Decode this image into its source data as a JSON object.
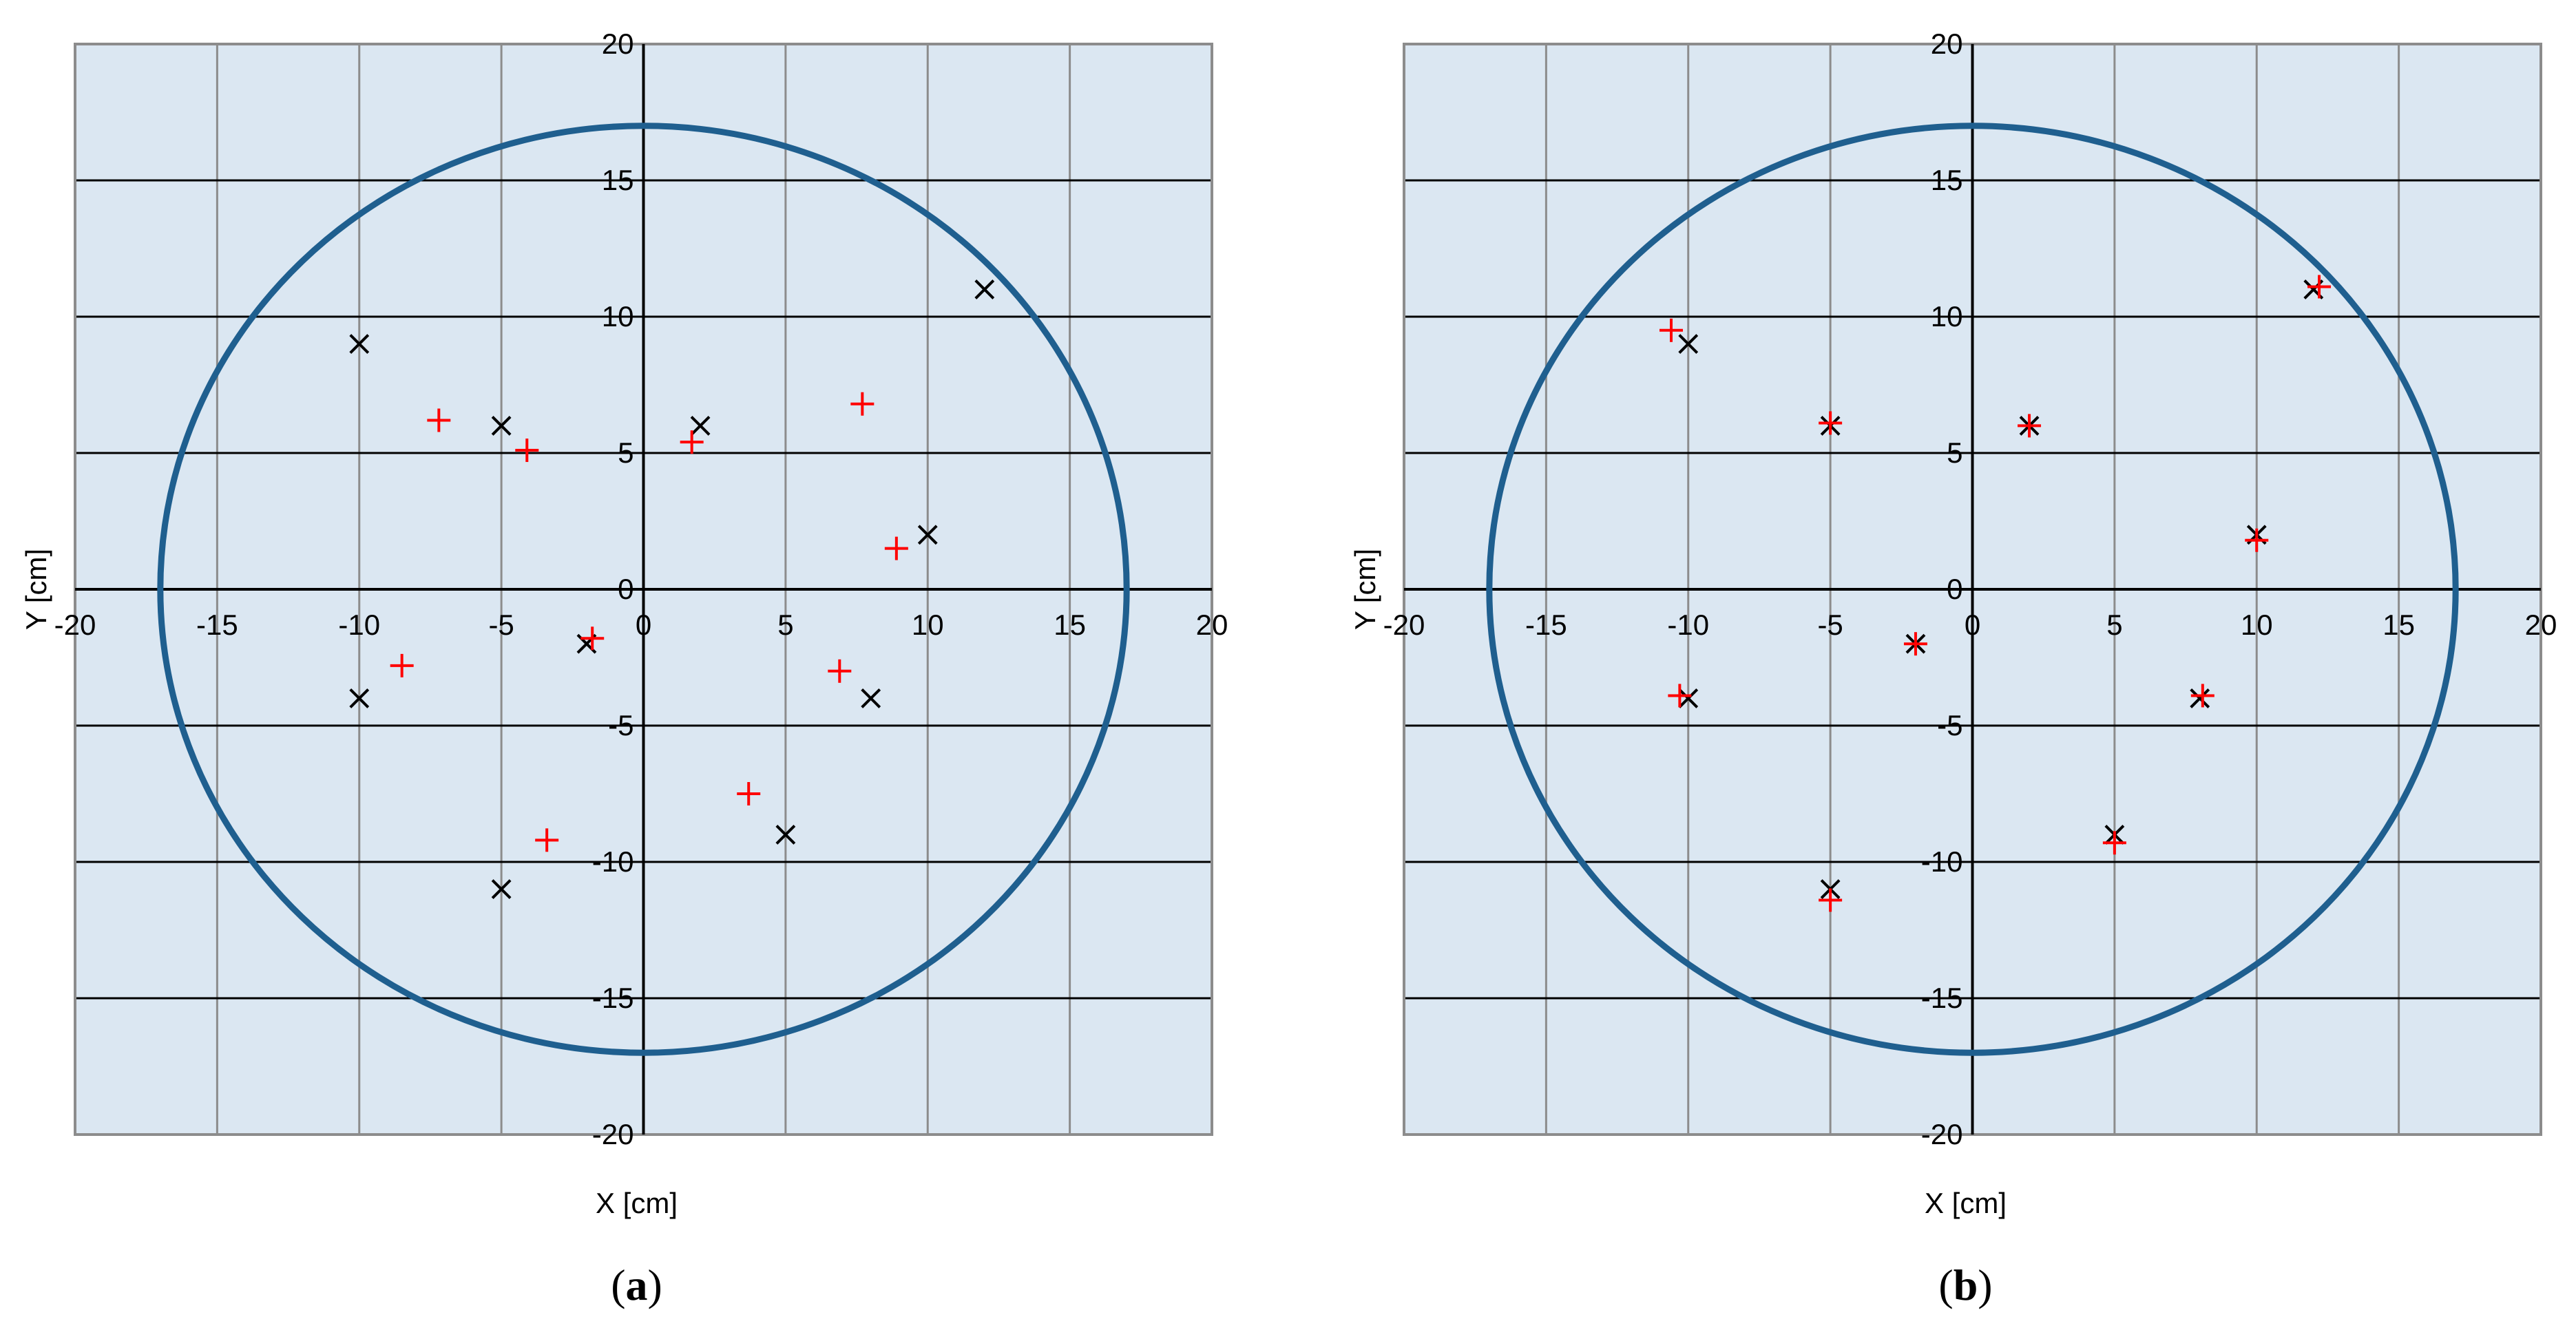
{
  "chart_data": [
    {
      "type": "scatter",
      "panel_label": "a",
      "xlabel": "X [cm]",
      "ylabel": "Y [cm]",
      "xlim": [
        -20,
        20
      ],
      "ylim": [
        -20,
        20
      ],
      "x_ticks": [
        -20,
        -15,
        -10,
        -5,
        0,
        5,
        10,
        15,
        20
      ],
      "y_ticks": [
        20,
        15,
        10,
        5,
        0,
        -5,
        -10,
        -15,
        -20
      ],
      "grid": true,
      "circle": {
        "cx": 0,
        "cy": 0,
        "r": 17,
        "color": "#1f5f8f"
      },
      "series": [
        {
          "marker": "x",
          "color": "#000000",
          "points": [
            [
              -10,
              9
            ],
            [
              -5,
              6
            ],
            [
              2,
              6
            ],
            [
              12,
              11
            ],
            [
              10,
              2
            ],
            [
              -10,
              -4
            ],
            [
              -2,
              -2
            ],
            [
              8,
              -4
            ],
            [
              5,
              -9
            ],
            [
              -5,
              -11
            ]
          ]
        },
        {
          "marker": "+",
          "color": "#ff0000",
          "points": [
            [
              -7.2,
              6.2
            ],
            [
              -4.1,
              5.1
            ],
            [
              1.7,
              5.4
            ],
            [
              7.7,
              6.8
            ],
            [
              8.9,
              1.5
            ],
            [
              -8.5,
              -2.8
            ],
            [
              -1.8,
              -1.8
            ],
            [
              6.9,
              -3.0
            ],
            [
              3.7,
              -7.5
            ],
            [
              -3.4,
              -9.2
            ]
          ]
        }
      ]
    },
    {
      "type": "scatter",
      "panel_label": "b",
      "xlabel": "X [cm]",
      "ylabel": "Y [cm]",
      "xlim": [
        -20,
        20
      ],
      "ylim": [
        -20,
        20
      ],
      "x_ticks": [
        -20,
        -15,
        -10,
        -5,
        0,
        5,
        10,
        15,
        20
      ],
      "y_ticks": [
        20,
        15,
        10,
        5,
        0,
        -5,
        -10,
        -15,
        -20
      ],
      "grid": true,
      "circle": {
        "cx": 0,
        "cy": 0,
        "r": 17,
        "color": "#1f5f8f"
      },
      "series": [
        {
          "marker": "x",
          "color": "#000000",
          "points": [
            [
              -10,
              9
            ],
            [
              -5,
              6
            ],
            [
              2,
              6
            ],
            [
              12,
              11
            ],
            [
              10,
              2
            ],
            [
              -10,
              -4
            ],
            [
              -2,
              -2
            ],
            [
              8,
              -4
            ],
            [
              5,
              -9
            ],
            [
              -5,
              -11
            ]
          ]
        },
        {
          "marker": "+",
          "color": "#ff0000",
          "points": [
            [
              -10.6,
              9.5
            ],
            [
              -5,
              6.1
            ],
            [
              2,
              6
            ],
            [
              12.2,
              11.1
            ],
            [
              10,
              1.8
            ],
            [
              -10.3,
              -3.9
            ],
            [
              -2,
              -2
            ],
            [
              8.1,
              -3.9
            ],
            [
              5,
              -9.3
            ],
            [
              -5,
              -11.4
            ]
          ]
        }
      ]
    }
  ]
}
